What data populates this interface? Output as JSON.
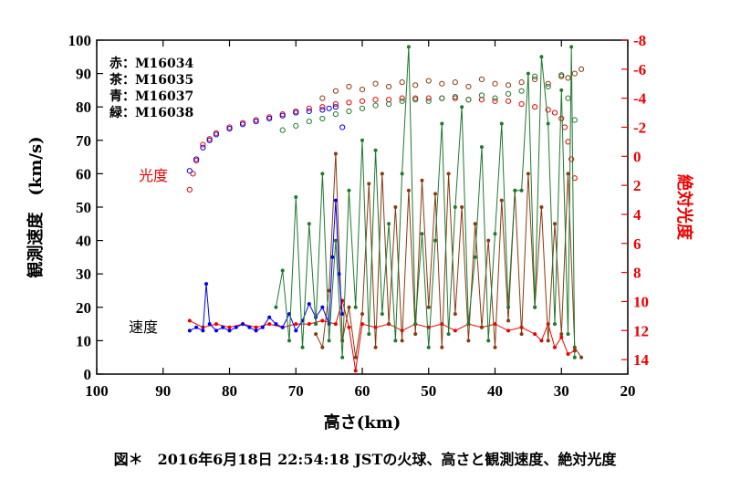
{
  "caption": "図＊　2016年6月18日 22:54:18 JSTの火球、高さと観測速度、絶対光度",
  "chart_data": {
    "type": "scatter",
    "xlabel": "高さ(km)",
    "ylabel": "観測速度　(km/s)",
    "y2label": "絶対光度",
    "xlim": [
      100,
      20
    ],
    "ylim": [
      0,
      100
    ],
    "y2lim": [
      15,
      -8
    ],
    "xticks": [
      "100",
      "90",
      "80",
      "70",
      "60",
      "50",
      "40",
      "30",
      "20"
    ],
    "yticks": [
      "0",
      "10",
      "20",
      "30",
      "40",
      "50",
      "60",
      "70",
      "80",
      "90",
      "100"
    ],
    "y2ticks": [
      "-8",
      "-6",
      "-4",
      "-2",
      "0",
      "2",
      "4",
      "6",
      "8",
      "10",
      "12",
      "14"
    ],
    "annotations": {
      "velocity_label": "速度",
      "magnitude_label": "光度"
    },
    "legend": [
      {
        "label": "赤：M16034",
        "color": "#ee0000"
      },
      {
        "label": "茶：M16035",
        "color": "#8b3a0f"
      },
      {
        "label": "青：M16037",
        "color": "#0000ee"
      },
      {
        "label": "緑：M16038",
        "color": "#1e7a2e"
      }
    ],
    "grid": false,
    "series": [
      {
        "name": "M16034",
        "color": "#ee0000",
        "velocity": {
          "x": [
            86,
            84,
            82,
            80,
            78,
            76,
            74,
            72,
            70,
            68,
            66,
            64,
            63,
            62,
            61,
            60,
            58,
            56,
            54,
            52,
            50,
            48,
            46,
            44,
            42,
            40,
            38,
            36,
            34,
            33,
            32,
            31,
            30,
            29,
            28
          ],
          "y": [
            16,
            14,
            15,
            14,
            15,
            14,
            15,
            14,
            15,
            15,
            16,
            15,
            22,
            14,
            1,
            15,
            14,
            15,
            13,
            15,
            14,
            15,
            13,
            15,
            14,
            15,
            13,
            14,
            12,
            10,
            15,
            8,
            11,
            6,
            7
          ]
        },
        "magnitude": {
          "x": [
            86,
            85.5,
            85,
            84,
            83,
            82,
            80,
            78,
            76,
            74,
            72,
            70,
            68,
            66,
            64,
            62,
            60,
            58,
            56,
            54,
            52,
            50,
            48,
            46,
            44,
            42,
            40,
            38,
            36,
            34,
            32,
            31,
            30,
            29.5,
            29,
            28.5,
            28
          ],
          "y": [
            2.3,
            1.2,
            0.3,
            -0.8,
            -1.2,
            -1.6,
            -2.0,
            -2.3,
            -2.5,
            -2.7,
            -2.9,
            -3.1,
            -3.3,
            -3.4,
            -3.6,
            -3.7,
            -3.8,
            -3.9,
            -3.9,
            -4.0,
            -4.0,
            -4.0,
            -4.0,
            -4.0,
            -3.9,
            -3.9,
            -3.8,
            -3.8,
            -3.6,
            -3.4,
            -3.2,
            -3.0,
            -2.6,
            -2.0,
            -1.0,
            0.2,
            1.5
          ]
        }
      },
      {
        "name": "M16035",
        "color": "#8b3a0f",
        "velocity": {
          "x": [
            67,
            66,
            65,
            64,
            63,
            62,
            61,
            60,
            59,
            58,
            57,
            56,
            55,
            54,
            53,
            52,
            51,
            50,
            49,
            48,
            47,
            46,
            45,
            44,
            43,
            42,
            41,
            40,
            39,
            38,
            37,
            36,
            35,
            34,
            33,
            32,
            31,
            30,
            29,
            28,
            27
          ],
          "y": [
            12,
            8,
            25,
            66,
            10,
            20,
            5,
            18,
            57,
            8,
            60,
            15,
            50,
            10,
            55,
            12,
            58,
            20,
            54,
            8,
            60,
            18,
            50,
            10,
            45,
            14,
            40,
            8,
            52,
            16,
            55,
            12,
            60,
            20,
            50,
            10,
            45,
            12,
            60,
            8,
            5
          ]
        },
        "magnitude": {
          "x": [
            66,
            64,
            62,
            60,
            58,
            56,
            54,
            52,
            50,
            48,
            46,
            44,
            42,
            40,
            38,
            36,
            34,
            32,
            30,
            29,
            28,
            27
          ],
          "y": [
            -4.0,
            -4.5,
            -4.8,
            -4.6,
            -5.0,
            -4.8,
            -5.1,
            -4.9,
            -5.2,
            -5.0,
            -5.1,
            -4.8,
            -5.3,
            -5.0,
            -4.9,
            -5.1,
            -5.3,
            -5.0,
            -5.5,
            -5.4,
            -5.7,
            -6.0
          ]
        }
      },
      {
        "name": "M16037",
        "color": "#0000ee",
        "velocity": {
          "x": [
            86,
            85,
            84,
            83.5,
            83,
            82,
            81,
            80,
            79,
            78,
            77,
            76,
            75,
            74,
            73,
            72,
            71,
            70,
            69,
            68,
            67,
            66,
            65,
            64.5,
            64,
            63.5,
            63
          ],
          "y": [
            13,
            14,
            13,
            27,
            15,
            13,
            14,
            13,
            14,
            15,
            14,
            13,
            14,
            17,
            15,
            14,
            18,
            13,
            16,
            21,
            17,
            20,
            15,
            35,
            52,
            30,
            18
          ]
        },
        "magnitude": {
          "x": [
            86,
            85,
            84,
            83,
            82,
            80,
            78,
            76,
            74,
            72,
            70,
            68,
            66,
            65,
            64,
            63
          ],
          "y": [
            1.0,
            0.2,
            -0.6,
            -1.1,
            -1.5,
            -1.9,
            -2.2,
            -2.4,
            -2.6,
            -2.8,
            -3.0,
            -3.1,
            -3.2,
            -3.3,
            -3.4,
            -2.0
          ]
        }
      },
      {
        "name": "M16038",
        "color": "#1e7a2e",
        "velocity": {
          "x": [
            73,
            72,
            71,
            70,
            69,
            68,
            67,
            66,
            65,
            64,
            63,
            62,
            61,
            60,
            59,
            58,
            57,
            56,
            55,
            54,
            53,
            52,
            51,
            50,
            49,
            48,
            47,
            46,
            45,
            44,
            43,
            42,
            41,
            40,
            39,
            38,
            37,
            36,
            35,
            34,
            33,
            32,
            31,
            30,
            29,
            28.5,
            28
          ],
          "y": [
            20,
            31,
            10,
            53,
            8,
            45,
            15,
            60,
            10,
            40,
            5,
            55,
            20,
            70,
            12,
            67,
            18,
            45,
            10,
            60,
            98,
            15,
            42,
            8,
            40,
            75,
            12,
            50,
            80,
            15,
            35,
            68,
            10,
            42,
            75,
            20,
            55,
            55,
            90,
            20,
            95,
            75,
            15,
            85,
            12,
            98,
            5
          ]
        },
        "magnitude": {
          "x": [
            72,
            70,
            68,
            66,
            64,
            62,
            60,
            58,
            56,
            54,
            52,
            50,
            48,
            46,
            44,
            42,
            40,
            38,
            36,
            34,
            32,
            30,
            29,
            28
          ],
          "y": [
            -1.8,
            -2.1,
            -2.4,
            -2.6,
            -2.9,
            -3.1,
            -3.3,
            -3.5,
            -3.6,
            -3.8,
            -3.9,
            -3.8,
            -4.0,
            -4.1,
            -3.9,
            -4.2,
            -4.0,
            -4.3,
            -4.5,
            -5.5,
            -4.8,
            -5.6,
            -4.0,
            -2.5
          ]
        }
      }
    ]
  }
}
